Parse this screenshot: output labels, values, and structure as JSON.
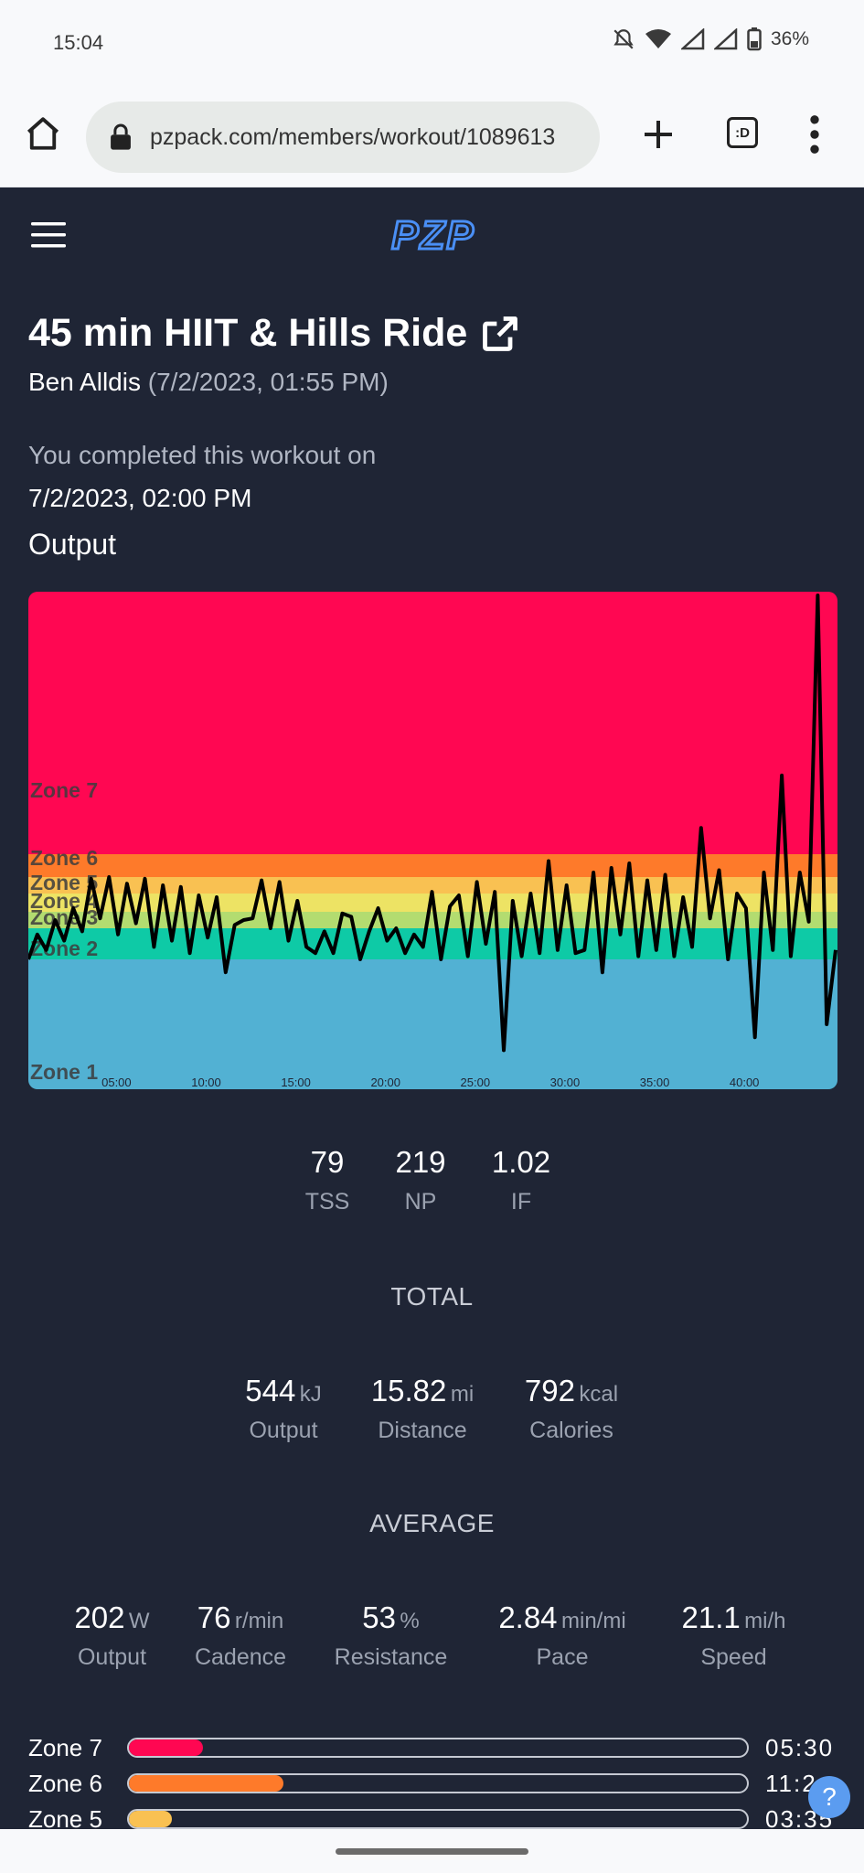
{
  "status_bar": {
    "time": "15:04",
    "battery": "36%"
  },
  "browser": {
    "url": "pzpack.com/members/workout/1089613",
    "tabs_label": ":D"
  },
  "site": {
    "logo": "PZP"
  },
  "workout": {
    "title": "45 min HIIT & Hills Ride",
    "instructor": "Ben Alldis",
    "class_date": "(7/2/2023, 01:55 PM)",
    "completed_text": "You completed this workout on",
    "completed_date": "7/2/2023, 02:00 PM",
    "section_label": "Output"
  },
  "chart_data": {
    "type": "line",
    "zones": [
      "Zone 1",
      "Zone 2",
      "Zone 3",
      "Zone 4",
      "Zone 5",
      "Zone 6",
      "Zone 7"
    ],
    "zone_colors": [
      "#52b1d3",
      "#0ecaa6",
      "#b3dc70",
      "#ede364",
      "#f9c152",
      "#fe7a2a",
      "#ff0752"
    ],
    "x_ticks": [
      "05:00",
      "10:00",
      "15:00",
      "20:00",
      "25:00",
      "30:00",
      "35:00",
      "40:00"
    ],
    "x_minutes": [
      0,
      0.5,
      1,
      1.5,
      2,
      2.5,
      3,
      3.5,
      4,
      4.5,
      5,
      5.5,
      6,
      6.5,
      7,
      7.5,
      8,
      8.5,
      9,
      9.5,
      10,
      10.5,
      11,
      11.5,
      12,
      12.5,
      13,
      13.5,
      14,
      14.5,
      15,
      15.5,
      16,
      16.5,
      17,
      17.5,
      18,
      18.5,
      19,
      19.5,
      20,
      20.5,
      21,
      21.5,
      22,
      22.5,
      23,
      23.5,
      24,
      24.5,
      25,
      25.5,
      26,
      26.5,
      27,
      27.5,
      28,
      28.5,
      29,
      29.5,
      30,
      30.5,
      31,
      31.5,
      32,
      32.5,
      33,
      33.5,
      34,
      34.5,
      35,
      35.5,
      36,
      36.5,
      37,
      37.5,
      38,
      38.5,
      39,
      39.5,
      40,
      40.5,
      41,
      41.5,
      42,
      42.5,
      43,
      43.5,
      44,
      44.5,
      45
    ],
    "zone_level": [
      2.0,
      2.8,
      2.3,
      3.5,
      2.6,
      4.2,
      2.9,
      5.9,
      3.6,
      6.0,
      2.8,
      5.6,
      3.3,
      5.9,
      2.4,
      5.5,
      2.6,
      5.4,
      2.2,
      4.9,
      2.7,
      4.8,
      1.9,
      3.2,
      3.5,
      3.6,
      5.8,
      3.0,
      5.7,
      2.6,
      4.6,
      2.4,
      2.2,
      2.9,
      2.2,
      3.9,
      3.7,
      2.0,
      2.9,
      4.2,
      2.6,
      3.0,
      2.2,
      2.8,
      2.4,
      5.1,
      2.0,
      4.3,
      4.9,
      2.1,
      5.7,
      2.5,
      5.1,
      1.3,
      4.6,
      2.1,
      5.0,
      2.2,
      6.7,
      2.3,
      5.5,
      2.2,
      2.3,
      6.2,
      1.9,
      6.4,
      2.8,
      6.6,
      2.1,
      5.8,
      2.3,
      6.1,
      2.1,
      4.8,
      2.4,
      7.1,
      3.6,
      6.3,
      2.0,
      5.0,
      4.2,
      1.4,
      6.2,
      2.3,
      7.3,
      2.1,
      6.2,
      3.4,
      8.4,
      1.5,
      2.3
    ]
  },
  "metrics": {
    "tss": {
      "value": "79",
      "label": "TSS"
    },
    "np": {
      "value": "219",
      "label": "NP"
    },
    "if": {
      "value": "1.02",
      "label": "IF"
    }
  },
  "total": {
    "heading": "TOTAL",
    "output": {
      "value": "544",
      "unit": "kJ",
      "label": "Output"
    },
    "distance": {
      "value": "15.82",
      "unit": "mi",
      "label": "Distance"
    },
    "calories": {
      "value": "792",
      "unit": "kcal",
      "label": "Calories"
    }
  },
  "average": {
    "heading": "AVERAGE",
    "output": {
      "value": "202",
      "unit": "W",
      "label": "Output"
    },
    "cadence": {
      "value": "76",
      "unit": "r/min",
      "label": "Cadence"
    },
    "resistance": {
      "value": "53",
      "unit": "%",
      "label": "Resistance"
    },
    "pace": {
      "value": "2.84",
      "unit": "min/mi",
      "label": "Pace"
    },
    "speed": {
      "value": "21.1",
      "unit": "mi/h",
      "label": "Speed"
    }
  },
  "zone_bars": [
    {
      "label": "Zone 7",
      "time": "05:30",
      "fraction": 0.12,
      "color": "#ff0752"
    },
    {
      "label": "Zone 6",
      "time": "11:2",
      "fraction": 0.25,
      "color": "#fe7a2a"
    },
    {
      "label": "Zone 5",
      "time": "03:35",
      "fraction": 0.07,
      "color": "#f9c152"
    }
  ],
  "help_button": "?"
}
